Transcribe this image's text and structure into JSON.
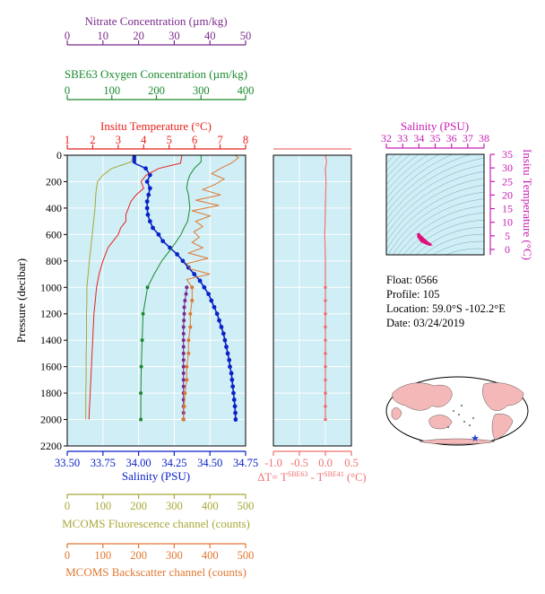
{
  "colors": {
    "plot_bg": "#cfeef6",
    "grid": "#ffffff",
    "nitrate": "#7a2a8c",
    "oxygen": "#1b8a2e",
    "temperature": "#e8201c",
    "salinity": "#0a22c8",
    "dt": "#f07070",
    "fluorescence": "#a8a83a",
    "backscatter": "#e07830",
    "ts_axis": "#c81eb4",
    "ts_points": "#e0107a",
    "land": "#f4b8b8",
    "ocean": "#ffffff",
    "marker": "#1f3fd0"
  },
  "labels": {
    "nitrate_title": "Nitrate Concentration (µm/kg)",
    "oxygen_title": "SBE63 Oxygen Concentration (µm/kg)",
    "temperature_title": "Insitu Temperature (°C)",
    "salinity_title": "Salinity (PSU)",
    "pressure_title": "Pressure (decibar)",
    "dt_title_prefix": "ΔT= T",
    "dt_sup1": "SBE63",
    "dt_mid": " - T",
    "dt_sup2": "SBE41",
    "dt_suffix": " (°C)",
    "fluorescence_title": "MCOMS Fluorescence channel (counts)",
    "backscatter_title": "MCOMS Backscatter channel (counts)",
    "ts_sal_title": "Salinity (PSU)",
    "ts_temp_title": "Insitu Temperature (°C)"
  },
  "info": {
    "float": "Float:  0566",
    "profile": "Profile:  105",
    "location": "Location:  59.0°S  -102.2°E",
    "date": "Date:  03/24/2019"
  },
  "chart_data": [
    {
      "type": "line",
      "id": "main-profile",
      "ylabel": "Pressure (decibar)",
      "ylim": [
        0,
        2200
      ],
      "y_inverted": true,
      "y_ticks": [
        0,
        200,
        400,
        600,
        800,
        1000,
        1200,
        1400,
        1600,
        1800,
        2000,
        2200
      ],
      "grid": true,
      "axes": {
        "salinity": {
          "label": "Salinity (PSU)",
          "lim": [
            33.5,
            34.75
          ],
          "ticks": [
            "33.50",
            "33.75",
            "34.00",
            "34.25",
            "34.50",
            "34.75"
          ]
        },
        "temperature": {
          "label": "Insitu Temperature (°C)",
          "lim": [
            1,
            8
          ],
          "ticks": [
            "1",
            "2",
            "3",
            "4",
            "5",
            "6",
            "7",
            "8"
          ]
        },
        "nitrate": {
          "label": "Nitrate Concentration (µm/kg)",
          "lim": [
            0,
            50
          ],
          "ticks": [
            "0",
            "10",
            "20",
            "30",
            "40",
            "50"
          ]
        },
        "oxygen": {
          "label": "SBE63 Oxygen Concentration (µm/kg)",
          "lim": [
            0,
            400
          ],
          "ticks": [
            "0",
            "100",
            "200",
            "300",
            "400"
          ]
        },
        "fluorescence": {
          "label": "MCOMS Fluorescence channel (counts)",
          "lim": [
            0,
            500
          ],
          "ticks": [
            "0",
            "100",
            "200",
            "300",
            "400",
            "500"
          ]
        },
        "backscatter": {
          "label": "MCOMS Backscatter channel (counts)",
          "lim": [
            0,
            500
          ],
          "ticks": [
            "0",
            "100",
            "200",
            "300",
            "400",
            "500"
          ]
        }
      },
      "series": [
        {
          "name": "Salinity",
          "axis": "salinity",
          "p": [
            0,
            60,
            100,
            150,
            200,
            250,
            300,
            350,
            400,
            450,
            500,
            550,
            600,
            650,
            700,
            750,
            800,
            850,
            900,
            950,
            1000,
            1050,
            1100,
            1150,
            1200,
            1250,
            1300,
            1350,
            1400,
            1450,
            1500,
            1550,
            1600,
            1650,
            1700,
            1750,
            1800,
            1850,
            1900,
            1950,
            2000
          ],
          "v": [
            33.97,
            33.97,
            34.05,
            34.08,
            34.06,
            34.08,
            34.07,
            34.06,
            34.06,
            34.065,
            34.08,
            34.1,
            34.14,
            34.17,
            34.22,
            34.27,
            34.31,
            34.35,
            34.39,
            34.43,
            34.46,
            34.49,
            34.51,
            34.53,
            34.55,
            34.565,
            34.58,
            34.595,
            34.605,
            34.615,
            34.625,
            34.635,
            34.64,
            34.65,
            34.655,
            34.66,
            34.665,
            34.67,
            34.675,
            34.678,
            34.68
          ]
        },
        {
          "name": "Temperature",
          "axis": "temperature",
          "p": [
            0,
            60,
            100,
            150,
            200,
            250,
            300,
            350,
            400,
            450,
            500,
            550,
            600,
            650,
            700,
            800,
            900,
            1000,
            1100,
            1200,
            1400,
            1600,
            1800,
            2000
          ],
          "v": [
            5.5,
            5.45,
            4.6,
            4.1,
            3.9,
            4.0,
            3.7,
            3.5,
            3.4,
            3.3,
            3.3,
            3.1,
            3.0,
            2.8,
            2.6,
            2.4,
            2.25,
            2.15,
            2.1,
            2.05,
            2.0,
            1.95,
            1.9,
            1.85
          ]
        },
        {
          "name": "Oxygen",
          "axis": "oxygen",
          "p": [
            0,
            50,
            100,
            150,
            200,
            250,
            300,
            400,
            500,
            550,
            600,
            700,
            800,
            900,
            1000,
            1200,
            1400,
            1600,
            1800,
            2000
          ],
          "v": [
            300,
            300,
            285,
            275,
            270,
            268,
            272,
            275,
            270,
            262,
            255,
            235,
            212,
            195,
            180,
            170,
            168,
            166,
            165,
            165
          ]
        },
        {
          "name": "Nitrate",
          "axis": "nitrate",
          "p": [
            1000,
            1050,
            1100,
            1150,
            1200,
            1250,
            1300,
            1350,
            1400,
            1450,
            1500,
            1550,
            1600,
            1650,
            1700,
            1750,
            1800,
            1850,
            1900,
            1950,
            2000
          ],
          "v": [
            33.5,
            33.3,
            33.0,
            32.8,
            32.8,
            32.7,
            32.6,
            32.6,
            32.6,
            32.6,
            32.6,
            32.6,
            32.6,
            32.6,
            32.6,
            32.6,
            32.6,
            32.6,
            32.6,
            32.6,
            32.6
          ]
        },
        {
          "name": "Fluorescence",
          "axis": "fluorescence",
          "p": [
            0,
            50,
            100,
            150,
            200,
            250,
            300,
            400,
            600,
            800,
            1000,
            1100,
            1200,
            1300,
            1400,
            1500,
            1600,
            1700,
            1800,
            1900,
            2000
          ],
          "v": [
            185,
            180,
            125,
            100,
            85,
            82,
            80,
            78,
            70,
            62,
            55,
            55,
            54,
            54,
            54,
            53,
            53,
            53,
            52,
            52,
            52
          ]
        },
        {
          "name": "Backscatter",
          "axis": "backscatter",
          "p": [
            0,
            20,
            60,
            100,
            140,
            180,
            220,
            260,
            300,
            340,
            380,
            420,
            460,
            500,
            540,
            580,
            620,
            660,
            700,
            740,
            780,
            820,
            860,
            900,
            940,
            1000,
            1100,
            1200,
            1300,
            1400,
            1500,
            1600,
            1700,
            1800,
            1900,
            2000
          ],
          "v": [
            470,
            480,
            460,
            430,
            405,
            440,
            415,
            380,
            430,
            360,
            425,
            350,
            400,
            360,
            380,
            355,
            370,
            350,
            380,
            340,
            395,
            335,
            345,
            400,
            335,
            350,
            350,
            345,
            345,
            340,
            340,
            335,
            335,
            330,
            328,
            325
          ]
        }
      ],
      "marker_series": [
        "Salinity",
        "Oxygen",
        "Nitrate",
        "Backscatter"
      ]
    },
    {
      "type": "line",
      "id": "delta-t",
      "xlabel": "ΔT= TSBE63 - TSBE41 (°C)",
      "xlim": [
        -1.0,
        0.5
      ],
      "x_ticks": [
        "-1.0",
        "-0.5",
        "0.0",
        "0.5"
      ],
      "ylim": [
        0,
        2200
      ],
      "y_inverted": true,
      "grid": true,
      "series": [
        {
          "name": "ΔT",
          "p": [
            0,
            50,
            100,
            200,
            400,
            600,
            800,
            1000,
            1100,
            1200,
            1300,
            1400,
            1500,
            1600,
            1700,
            1800,
            1900,
            2000
          ],
          "v": [
            0.0,
            0.02,
            0.0,
            0.01,
            0.0,
            -0.01,
            0.0,
            0.0,
            0.0,
            0.0,
            0.0,
            0.0,
            0.0,
            0.0,
            0.0,
            0.0,
            0.0,
            0.0
          ]
        }
      ]
    },
    {
      "type": "scatter",
      "id": "t-s-diagram",
      "xlabel": "Salinity (PSU)",
      "ylabel": "Insitu Temperature (°C)",
      "xlim": [
        32,
        38
      ],
      "ylim": [
        -2,
        35
      ],
      "x_ticks": [
        "32",
        "33",
        "34",
        "35",
        "36",
        "37",
        "38"
      ],
      "y_ticks": [
        "0",
        "5",
        "10",
        "15",
        "20",
        "25",
        "30",
        "35"
      ],
      "series": [
        {
          "name": "T-S",
          "x": [
            34.0,
            33.97,
            33.98,
            34.05,
            34.08,
            34.1,
            34.15,
            34.2,
            34.3,
            34.4,
            34.5,
            34.6,
            34.65,
            34.68
          ],
          "y": [
            5.5,
            5.4,
            4.6,
            4.2,
            4.0,
            3.6,
            3.2,
            3.0,
            2.7,
            2.4,
            2.2,
            2.0,
            1.9,
            1.85
          ]
        }
      ]
    }
  ]
}
